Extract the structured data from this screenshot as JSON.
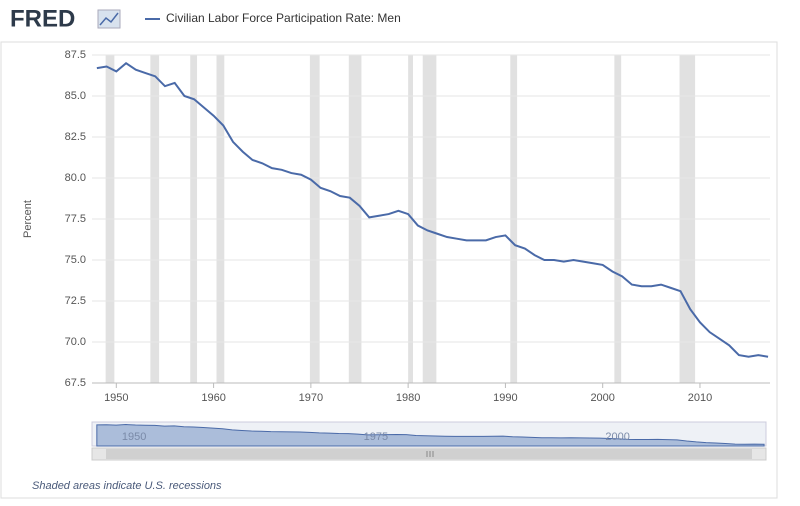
{
  "chart_data": {
    "type": "line",
    "logo": "FRED",
    "title": "Civilian Labor Force Participation Rate: Men",
    "y_label": "Percent",
    "footnote": "Shaded areas indicate U.S. recessions",
    "x": [
      1948,
      1949,
      1950,
      1951,
      1952,
      1953,
      1954,
      1955,
      1956,
      1957,
      1958,
      1959,
      1960,
      1961,
      1962,
      1963,
      1964,
      1965,
      1966,
      1967,
      1968,
      1969,
      1970,
      1971,
      1972,
      1973,
      1974,
      1975,
      1976,
      1977,
      1978,
      1979,
      1980,
      1981,
      1982,
      1983,
      1984,
      1985,
      1986,
      1987,
      1988,
      1989,
      1990,
      1991,
      1992,
      1993,
      1994,
      1995,
      1996,
      1997,
      1998,
      1999,
      2000,
      2001,
      2002,
      2003,
      2004,
      2005,
      2006,
      2007,
      2008,
      2009,
      2010,
      2011,
      2012,
      2013,
      2014,
      2015,
      2016,
      2017
    ],
    "series": [
      {
        "name": "Civilian Labor Force Participation Rate: Men",
        "color": "#4a6aa8",
        "values": [
          86.7,
          86.8,
          86.5,
          87.0,
          86.6,
          86.4,
          86.2,
          85.6,
          85.8,
          85.0,
          84.8,
          84.3,
          83.8,
          83.2,
          82.2,
          81.6,
          81.1,
          80.9,
          80.6,
          80.5,
          80.3,
          80.2,
          79.9,
          79.4,
          79.2,
          78.9,
          78.8,
          78.3,
          77.6,
          77.7,
          77.8,
          78.0,
          77.8,
          77.1,
          76.8,
          76.6,
          76.4,
          76.3,
          76.2,
          76.2,
          76.2,
          76.4,
          76.5,
          75.9,
          75.7,
          75.3,
          75.0,
          75.0,
          74.9,
          75.0,
          74.9,
          74.8,
          74.7,
          74.3,
          74.0,
          73.5,
          73.4,
          73.4,
          73.5,
          73.3,
          73.1,
          72.0,
          71.2,
          70.6,
          70.2,
          69.8,
          69.2,
          69.1,
          69.2,
          69.1
        ]
      }
    ],
    "recessions": [
      [
        1948.9,
        1949.8
      ],
      [
        1953.5,
        1954.4
      ],
      [
        1957.6,
        1958.3
      ],
      [
        1960.3,
        1961.1
      ],
      [
        1969.9,
        1970.9
      ],
      [
        1973.9,
        1975.2
      ],
      [
        1980.0,
        1980.5
      ],
      [
        1981.5,
        1982.9
      ],
      [
        1990.5,
        1991.2
      ],
      [
        2001.2,
        2001.9
      ],
      [
        2007.9,
        2009.5
      ]
    ],
    "recession_color": "#e1e1e1",
    "xlim": [
      1947.5,
      2017.2
    ],
    "ylim": [
      67.5,
      87.5
    ],
    "xticks": [
      1950,
      1960,
      1970,
      1980,
      1990,
      2000,
      2010
    ],
    "yticks": [
      67.5,
      {
        "value": 70,
        "label": "70.0"
      },
      72.5,
      {
        "value": 75,
        "label": "75.0"
      },
      77.5,
      {
        "value": 80,
        "label": "80.0"
      },
      82.5,
      {
        "value": 85,
        "label": "85.0"
      },
      87.5
    ],
    "grid": true,
    "navigator_xticks": [
      1950,
      1975,
      2000
    ]
  }
}
